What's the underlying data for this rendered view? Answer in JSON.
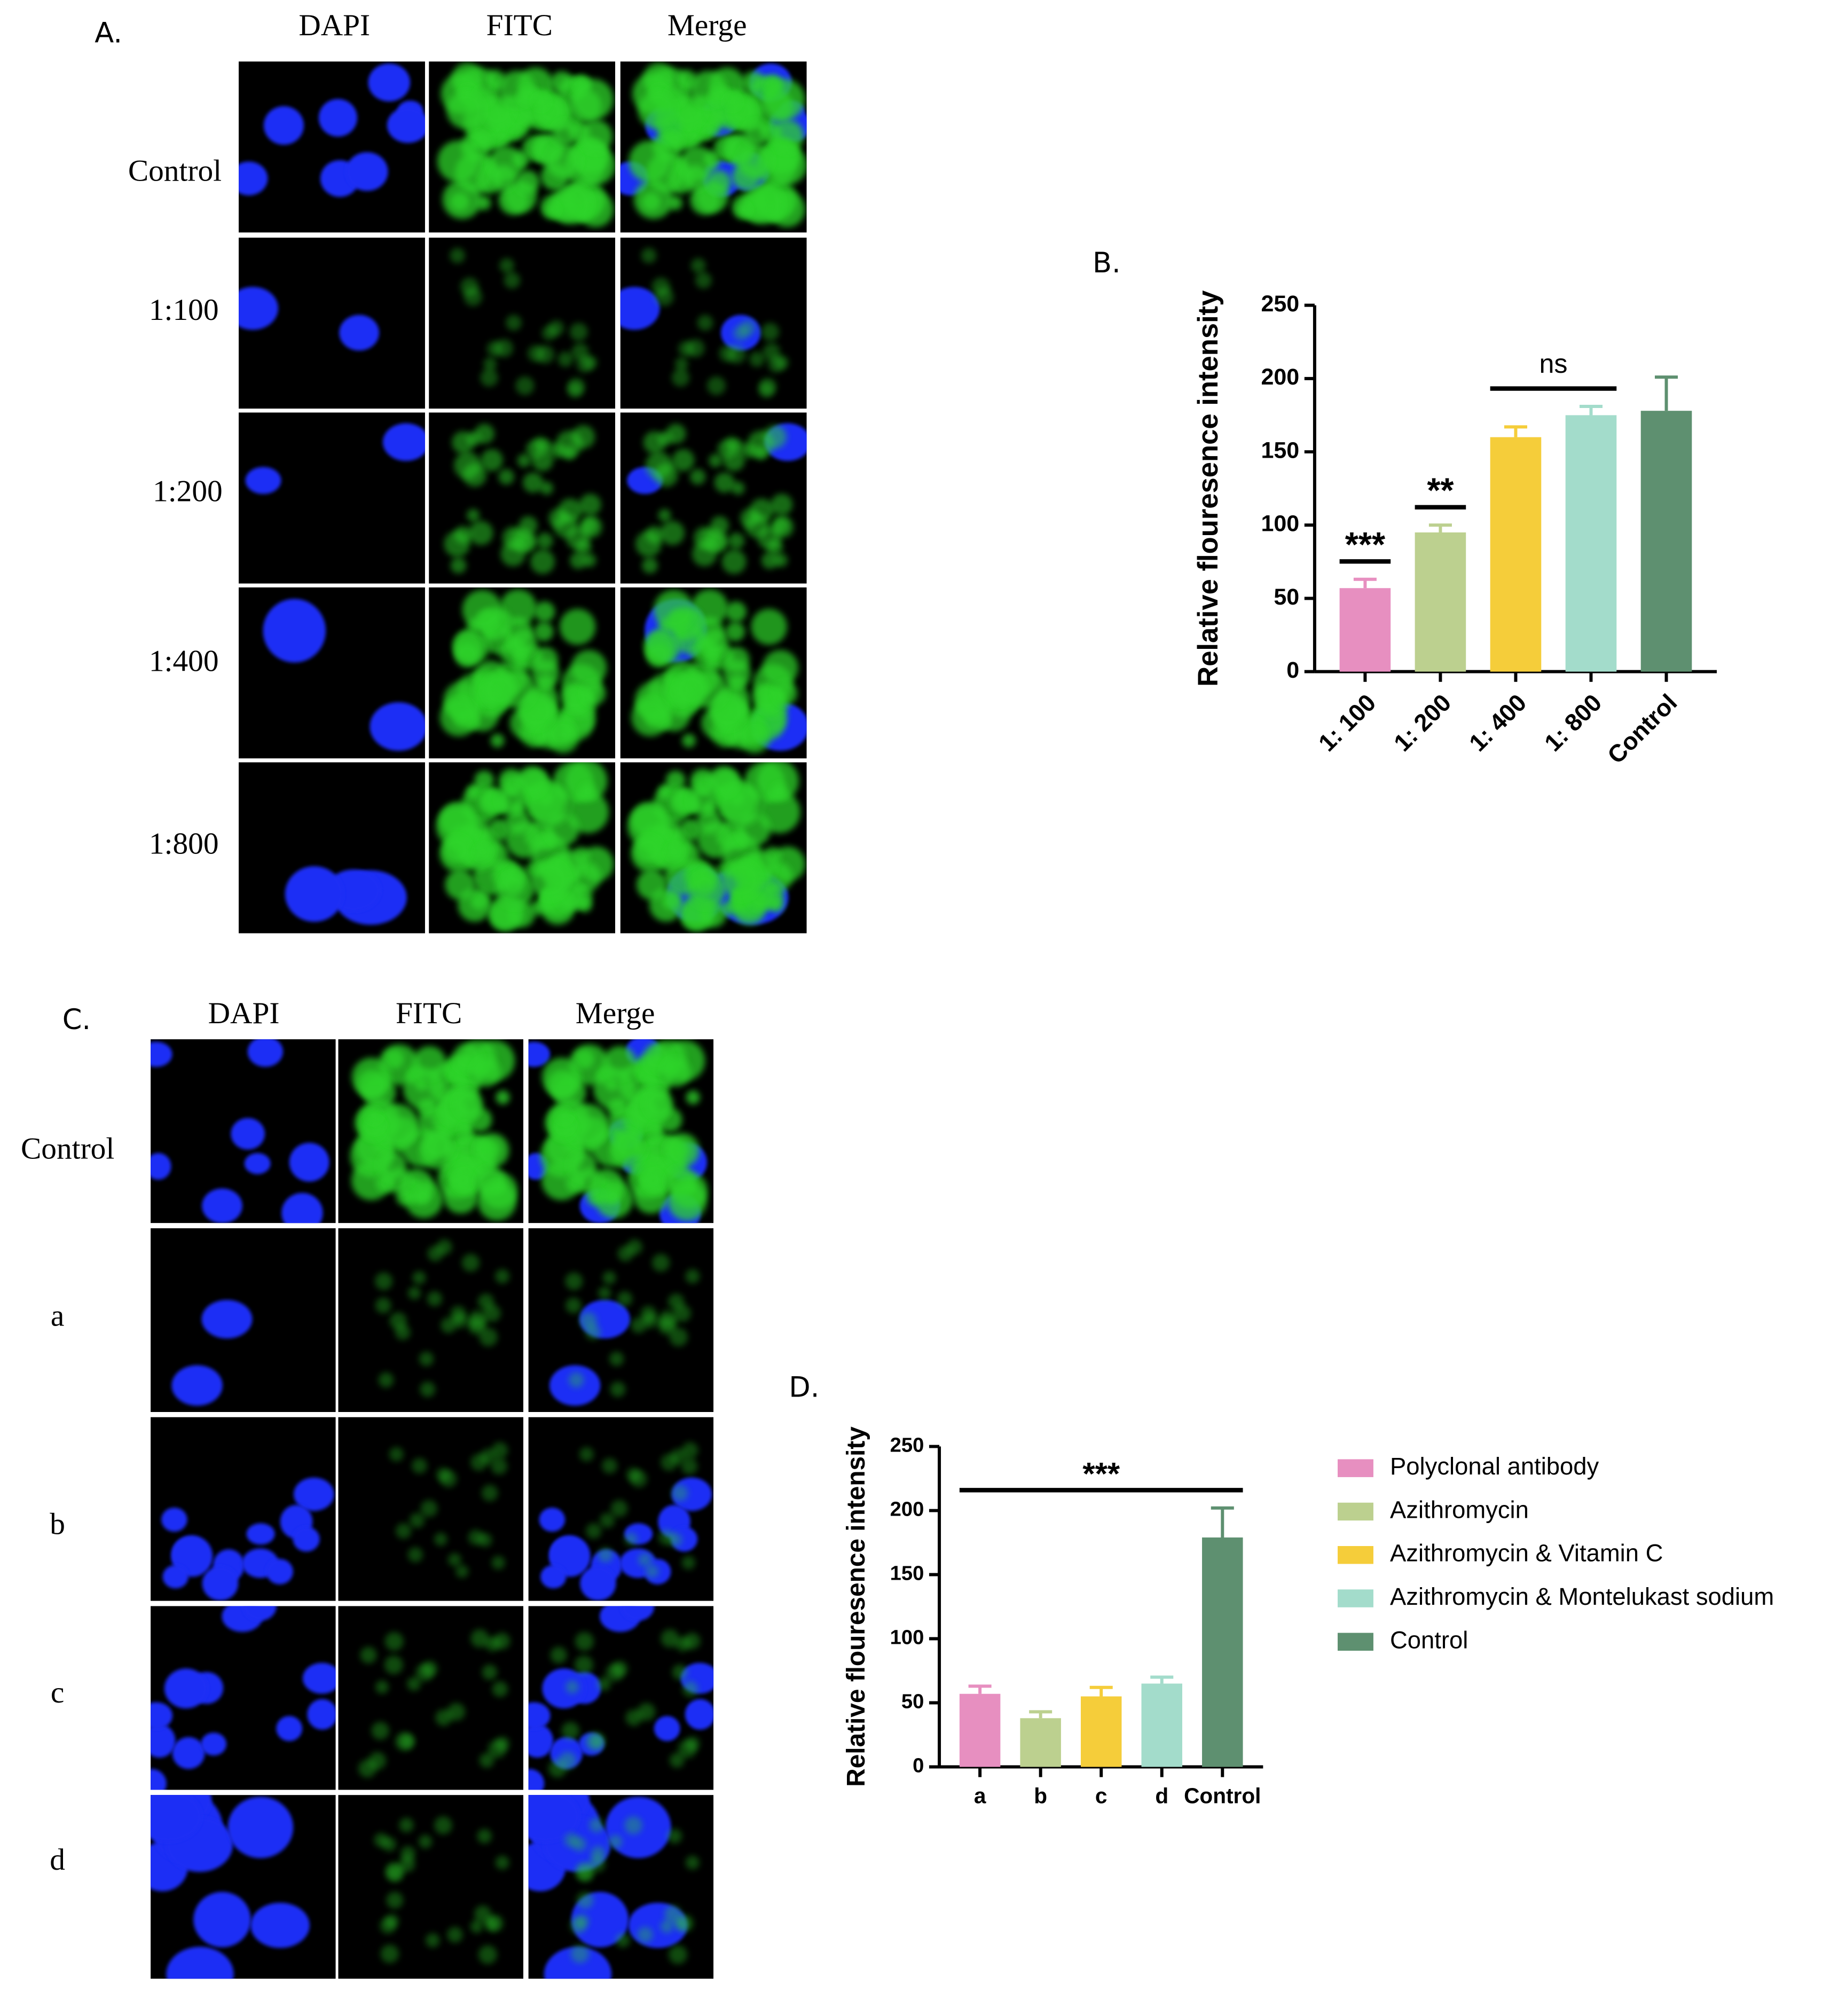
{
  "panels": [
    {
      "label": "A.",
      "columns": [
        "DAPI",
        "FITC",
        "Merge"
      ],
      "rows": [
        "Control",
        "1:100",
        "1:200",
        "1:400",
        "1:800"
      ]
    },
    {
      "label": "C.",
      "columns": [
        "DAPI",
        "FITC",
        "Merge"
      ],
      "rows": [
        "Control",
        "a",
        "b",
        "c",
        "d"
      ]
    }
  ],
  "chart_data": [
    {
      "type": "bar",
      "panel_label": "B.",
      "y_label": "Relative flouresence intensity",
      "categories": [
        "1: 100",
        "1: 200",
        "1: 400",
        "1: 800",
        "Control"
      ],
      "values": [
        57,
        95,
        160,
        175,
        178
      ],
      "errors": [
        6,
        5,
        7,
        6,
        23
      ],
      "colors": [
        "#e78fc0",
        "#bcd08f",
        "#f5cd3a",
        "#a3dccb",
        "#5e9070"
      ],
      "ylim": [
        0,
        250
      ],
      "yticks": [
        0,
        50,
        100,
        150,
        200,
        250
      ],
      "annotations": [
        {
          "text": "***",
          "start": "1: 100",
          "end": "1: 100"
        },
        {
          "text": "**",
          "start": "1: 200",
          "end": "1: 200"
        },
        {
          "text": "ns",
          "start": "1: 400",
          "end": "1: 800"
        }
      ]
    },
    {
      "type": "bar",
      "panel_label": "D.",
      "y_label": "Relative flouresence intensity",
      "categories": [
        "a",
        "b",
        "c",
        "d",
        "Control"
      ],
      "values": [
        57,
        38,
        55,
        65,
        179
      ],
      "errors": [
        6,
        5,
        7,
        5,
        23
      ],
      "colors": [
        "#e78fc0",
        "#bcd08f",
        "#f5cd3a",
        "#a3dccb",
        "#5e9070"
      ],
      "legend_labels": [
        "Polyclonal antibody",
        "Azithromycin",
        "Azithromycin & Vitamin C",
        "Azithromycin & Montelukast sodium",
        "Control"
      ],
      "legend": "right",
      "ylim": [
        0,
        250
      ],
      "yticks": [
        0,
        50,
        100,
        150,
        200,
        250
      ],
      "annotations": [
        {
          "text": "***",
          "start": "a",
          "end": "Control"
        }
      ]
    }
  ]
}
